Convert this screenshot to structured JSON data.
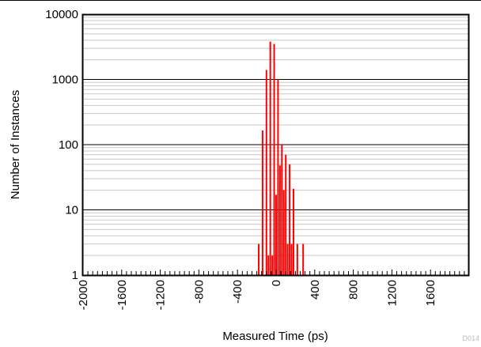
{
  "chart_data": {
    "type": "bar",
    "xlabel": "Measured Time (ps)",
    "ylabel": "Number of Instances",
    "yscale": "log",
    "ylim": [
      1,
      10000
    ],
    "xlim": [
      -2000,
      2000
    ],
    "y_ticks": [
      "1",
      "10",
      "100",
      "1000",
      "10000"
    ],
    "x_ticks": [
      "-2000",
      "-1600",
      "-1200",
      "-800",
      "-400",
      "0",
      "400",
      "800",
      "1200",
      "1600"
    ],
    "series": [
      {
        "color": "#ff0000",
        "x": [
          -180,
          -140,
          -100,
          -80,
          -60,
          -40,
          -20,
          0,
          20,
          40,
          60,
          80,
          100,
          120,
          140,
          160,
          180,
          220,
          280
        ],
        "values": [
          3,
          165,
          1400,
          2,
          3800,
          2,
          3500,
          17,
          1000,
          48,
          100,
          20,
          70,
          3,
          50,
          3,
          21,
          3,
          3
        ]
      }
    ],
    "grid": true,
    "figure_code": "D014"
  }
}
